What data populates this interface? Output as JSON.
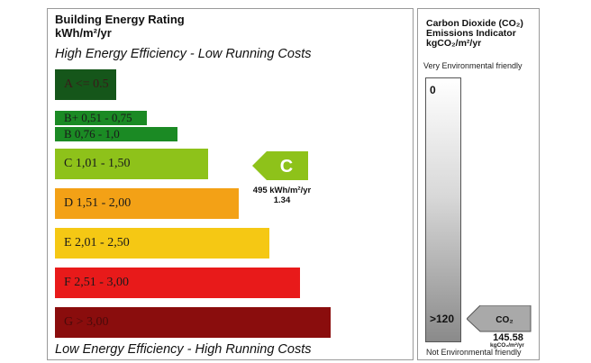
{
  "rating": {
    "title": "Building Energy Rating",
    "unit": "kWh/m²/yr",
    "top_tagline": "High Energy Efficiency - Low Running Costs",
    "bottom_tagline": "Low Energy Efficiency - High Running Costs",
    "current_band": "C",
    "current_value": "495 kWh/m²/yr",
    "current_secondary": "1.34"
  },
  "chart_data": {
    "type": "bar",
    "title": "Building Energy Rating",
    "ylabel": "kWh/m²/yr",
    "categories": [
      "A <= 0.5",
      "B+ 0,51 - 0,75",
      "B 0,76 - 1,0",
      "C 1,01 - 1,50",
      "D 1,51 - 2,00",
      "E 2,01 - 2,50",
      "F 2,51 - 3,00",
      "G > 3,00"
    ],
    "values": [
      1,
      2,
      3,
      4,
      5,
      6,
      7,
      8
    ],
    "colors": [
      "#15561a",
      "#1b8a24",
      "#1b8a24",
      "#8ec21a",
      "#f3a116",
      "#f5c814",
      "#e81a1a",
      "#8a0d0d"
    ],
    "current": {
      "band": "C",
      "value": "495 kWh/m²/yr",
      "secondary": "1.34"
    }
  },
  "co2": {
    "title_line1": "Carbon Dioxide (CO₂)",
    "title_line2": "Emissions Indicator",
    "title_line3": "kgCO₂/m²/yr",
    "top_label": "Very Environmental friendly",
    "bottom_label": "Not Environmental friendly",
    "scale_min": "0",
    "scale_max": ">120",
    "pointer_label": "CO₂",
    "value": "145.58",
    "value_unit": "kgCO₂/m²/yr"
  }
}
